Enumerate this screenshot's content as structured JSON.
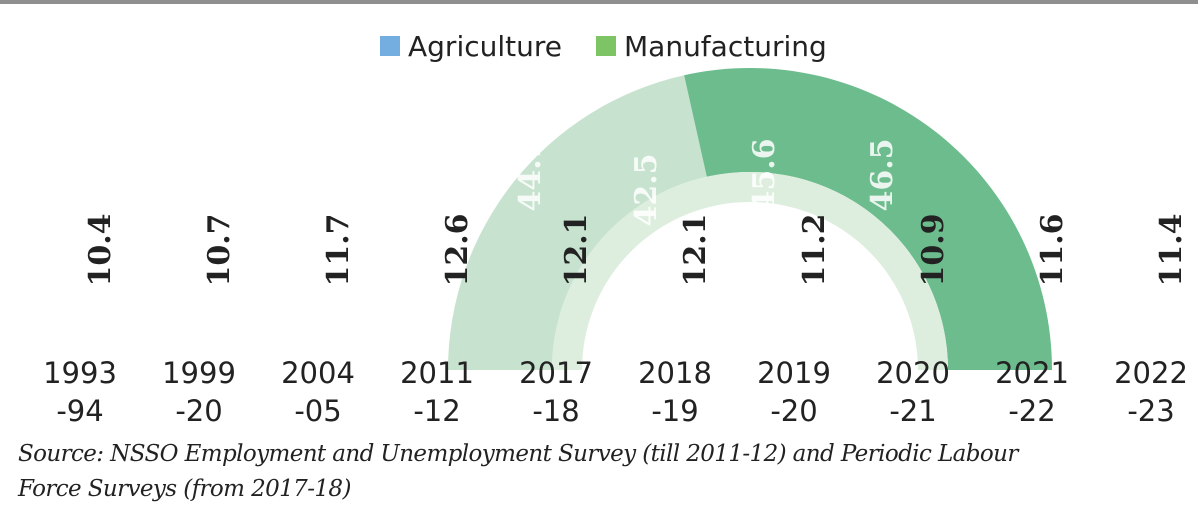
{
  "legend": [
    {
      "label": "Agriculture",
      "color": "#74aee0"
    },
    {
      "label": "Manufacturing",
      "color": "#7cc464"
    }
  ],
  "source": {
    "line1": "Source: NSSO Employment and Unemployment Survey (till 2011-12) and Periodic Labour",
    "line2": "Force Surveys (from 2017-18)"
  },
  "chart_data": {
    "type": "bar",
    "title": "",
    "xlabel": "",
    "ylabel": "",
    "categories": [
      {
        "top": "1993",
        "bottom": "-94"
      },
      {
        "top": "1999",
        "bottom": "-20"
      },
      {
        "top": "2004",
        "bottom": "-05"
      },
      {
        "top": "2011",
        "bottom": "-12"
      },
      {
        "top": "2017",
        "bottom": "-18"
      },
      {
        "top": "2018",
        "bottom": "-19"
      },
      {
        "top": "2019",
        "bottom": "-20"
      },
      {
        "top": "2020",
        "bottom": "-21"
      },
      {
        "top": "2021",
        "bottom": "-22"
      },
      {
        "top": "2022",
        "bottom": "-23"
      }
    ],
    "series": [
      {
        "name": "Agriculture",
        "values": [
          null,
          null,
          null,
          null,
          44.1,
          42.5,
          45.6,
          46.5,
          null,
          null
        ],
        "visible_labels": [
          "44.1",
          "42.5",
          "45.6",
          "46.5"
        ]
      },
      {
        "name": "Manufacturing",
        "values": [
          10.4,
          10.7,
          11.7,
          12.6,
          12.1,
          12.1,
          11.2,
          10.9,
          11.6,
          11.4
        ]
      }
    ],
    "colors": {
      "manufacturing_label": "#222222",
      "arc_light": "#c7e3cf",
      "arc_mid": "#9fd3b1",
      "arc_dark": "#6cbc8d",
      "arc_inner": "#ddeedf"
    }
  }
}
